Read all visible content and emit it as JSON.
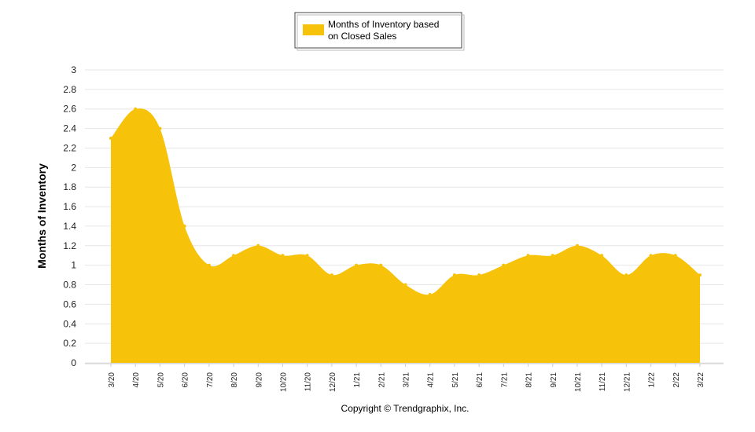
{
  "chart_data": {
    "type": "area",
    "categories": [
      "3/20",
      "4/20",
      "5/20",
      "6/20",
      "7/20",
      "8/20",
      "9/20",
      "10/20",
      "11/20",
      "12/20",
      "1/21",
      "2/21",
      "3/21",
      "4/21",
      "5/21",
      "6/21",
      "7/21",
      "8/21",
      "9/21",
      "10/21",
      "11/21",
      "12/21",
      "1/22",
      "2/22",
      "3/22"
    ],
    "series": [
      {
        "name": "Months of Inventory based on Closed Sales",
        "values": [
          2.3,
          2.6,
          2.4,
          1.4,
          1.0,
          1.1,
          1.2,
          1.1,
          1.1,
          0.9,
          1.0,
          1.0,
          0.8,
          0.7,
          0.9,
          0.9,
          1.0,
          1.1,
          1.1,
          1.2,
          1.1,
          0.9,
          1.1,
          1.1,
          0.9
        ]
      }
    ],
    "ylabel": "Months of Inventory",
    "xlabel": "",
    "ylim": [
      0,
      3
    ],
    "yticks": [
      "0",
      "0.2",
      "0.4",
      "0.6",
      "0.8",
      "1",
      "1.2",
      "1.4",
      "1.6",
      "1.8",
      "2",
      "2.2",
      "2.4",
      "2.6",
      "2.8",
      "3"
    ],
    "grid": true,
    "legend_position": "top-center",
    "colors": {
      "area": "#F7C20A",
      "grid": "#e6e6e6",
      "axis": "#cccccc"
    }
  },
  "legend": {
    "line1": "Months of Inventory based",
    "line2": "on Closed Sales"
  },
  "footer": {
    "copyright": "Copyright © Trendgraphix, Inc."
  }
}
